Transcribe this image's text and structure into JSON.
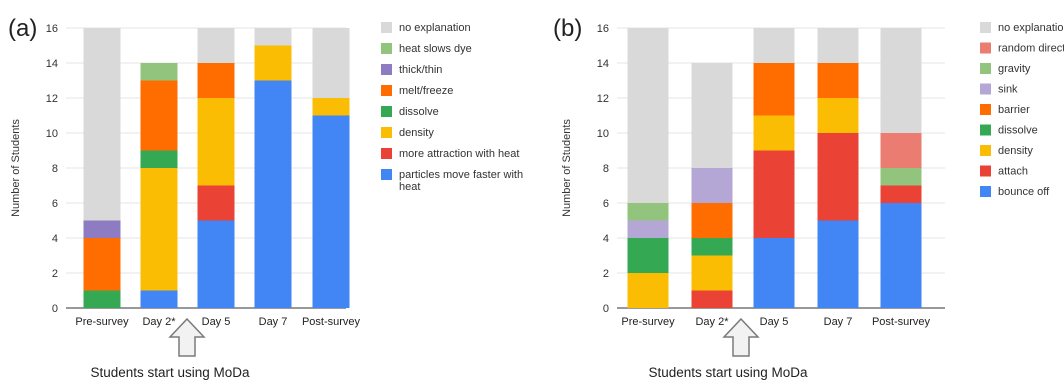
{
  "chart_data": [
    {
      "panel_label": "(a)",
      "type": "stacked-bar",
      "ylabel": "Number of Students",
      "ylim": [
        0,
        16
      ],
      "yticks": [
        0,
        2,
        4,
        6,
        8,
        10,
        12,
        14,
        16
      ],
      "categories": [
        "Pre-survey",
        "Day 2*",
        "Day 5",
        "Day 7",
        "Post-survey"
      ],
      "legend_position": "right",
      "series": [
        {
          "name": "particles move faster with heat",
          "color": "#4285f4",
          "values": [
            0,
            1,
            5,
            13,
            11
          ]
        },
        {
          "name": "more attraction with heat",
          "color": "#ea4335",
          "values": [
            0,
            0,
            2,
            0,
            0
          ]
        },
        {
          "name": "density",
          "color": "#fbbc04",
          "values": [
            0,
            7,
            5,
            2,
            1
          ]
        },
        {
          "name": "dissolve",
          "color": "#34a853",
          "values": [
            1,
            1,
            0,
            0,
            0
          ]
        },
        {
          "name": "melt/freeze",
          "color": "#ff6d01",
          "values": [
            3,
            4,
            2,
            0,
            0
          ]
        },
        {
          "name": "thick/thin",
          "color": "#8e7cc3",
          "values": [
            1,
            0,
            0,
            0,
            0
          ]
        },
        {
          "name": "heat slows dye",
          "color": "#93c47d",
          "values": [
            0,
            1,
            0,
            0,
            0
          ]
        },
        {
          "name": "no explanation",
          "color": "#d9d9d9",
          "values": [
            11,
            0,
            2,
            1,
            4
          ]
        }
      ],
      "legend_order": [
        "no explanation",
        "heat slows dye",
        "thick/thin",
        "melt/freeze",
        "dissolve",
        "density",
        "more attraction with heat",
        "particles move faster with heat"
      ],
      "annotation": "Students start using MoDa",
      "annotation_target": "Day 2*"
    },
    {
      "panel_label": "(b)",
      "type": "stacked-bar",
      "ylabel": "Number of Students",
      "ylim": [
        0,
        16
      ],
      "yticks": [
        0,
        2,
        4,
        6,
        8,
        10,
        12,
        14,
        16
      ],
      "categories": [
        "Pre-survey",
        "Day 2*",
        "Day 5",
        "Day 7",
        "Post-survey"
      ],
      "legend_position": "right",
      "series": [
        {
          "name": "bounce off",
          "color": "#4285f4",
          "values": [
            0,
            0,
            4,
            5,
            6
          ]
        },
        {
          "name": "attach",
          "color": "#ea4335",
          "values": [
            0,
            1,
            5,
            5,
            1
          ]
        },
        {
          "name": "density",
          "color": "#fbbc04",
          "values": [
            2,
            2,
            2,
            2,
            0
          ]
        },
        {
          "name": "dissolve",
          "color": "#34a853",
          "values": [
            2,
            1,
            0,
            0,
            0
          ]
        },
        {
          "name": "barrier",
          "color": "#ff6d01",
          "values": [
            0,
            2,
            3,
            2,
            0
          ]
        },
        {
          "name": "sink",
          "color": "#b4a7d6",
          "values": [
            1,
            2,
            0,
            0,
            0
          ]
        },
        {
          "name": "gravity",
          "color": "#93c47d",
          "values": [
            1,
            0,
            0,
            0,
            1
          ]
        },
        {
          "name": "random direction",
          "color": "#ea7c72",
          "values": [
            0,
            0,
            0,
            0,
            2
          ]
        },
        {
          "name": "no explanation",
          "color": "#d9d9d9",
          "values": [
            10,
            6,
            2,
            2,
            6
          ]
        }
      ],
      "legend_order": [
        "no explanation",
        "random direction",
        "gravity",
        "sink",
        "barrier",
        "dissolve",
        "density",
        "attach",
        "bounce off"
      ],
      "annotation": "Students start using MoDa",
      "annotation_target": "Day 2*"
    }
  ]
}
